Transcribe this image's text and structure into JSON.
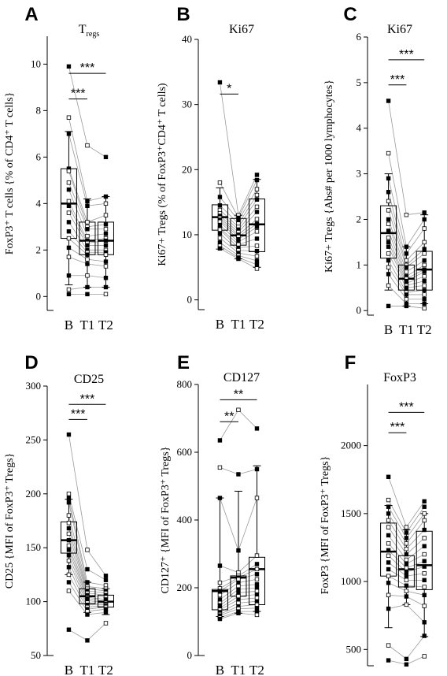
{
  "chart_data": [
    {
      "type": "box",
      "panel": "A",
      "title": "T",
      "title_sub": "regs",
      "ylabel": "FoxP3⁺ T cells {% of CD4⁺ T cells}",
      "ylim": [
        -0.6,
        11.2
      ],
      "yticks": [
        "0",
        "2",
        "4",
        "6",
        "8",
        "10"
      ],
      "yticks_values": [
        0,
        2,
        4,
        6,
        8,
        10
      ],
      "categories": [
        "B",
        "T1",
        "T2"
      ],
      "box": [
        {
          "whisker_low": 0.5,
          "q1": 2.5,
          "median": 4.0,
          "q3": 5.5,
          "whisker_high": 7.1
        },
        {
          "whisker_low": 0.4,
          "q1": 1.8,
          "median": 2.4,
          "q3": 3.2,
          "whisker_high": 4.2
        },
        {
          "whisker_low": 0.4,
          "q1": 1.8,
          "median": 2.4,
          "q3": 3.2,
          "whisker_high": 4.3
        }
      ],
      "points": [
        [
          9.9,
          7.7,
          7.0,
          5.5,
          5.4,
          4.9,
          4.6,
          4.1,
          3.9,
          3.6,
          3.2,
          2.8,
          2.5,
          2.1,
          1.7,
          0.9,
          0.3,
          0.1
        ],
        [
          6.5,
          4.1,
          3.9,
          3.2,
          3.0,
          2.9,
          2.6,
          2.4,
          2.3,
          2.2,
          2.0,
          1.9,
          1.8,
          1.6,
          1.4,
          0.9,
          0.4,
          0.1
        ],
        [
          6.0,
          4.3,
          4.0,
          3.5,
          3.1,
          2.9,
          2.7,
          2.5,
          2.4,
          2.2,
          2.0,
          1.9,
          1.8,
          1.5,
          1.3,
          0.8,
          0.4,
          0.1
        ]
      ],
      "significance": [
        {
          "from": "B",
          "to": "T1",
          "label": "***",
          "y": 8.5
        },
        {
          "from": "B",
          "to": "T2",
          "label": "***",
          "y": 9.6
        }
      ]
    },
    {
      "type": "box",
      "panel": "B",
      "title": "Ki67",
      "ylabel": "Ki67+ Tregs (% of FoxP3⁺CD4⁺ T cells)",
      "ylim": [
        -1.5,
        40
      ],
      "yticks": [
        "0",
        "10",
        "20",
        "30",
        "40"
      ],
      "yticks_values": [
        0,
        10,
        20,
        30,
        40
      ],
      "categories": [
        "B",
        "T1",
        "T2"
      ],
      "box": [
        {
          "whisker_low": 7.8,
          "q1": 10.7,
          "median": 12.7,
          "q3": 14.6,
          "whisker_high": 17.2
        },
        {
          "whisker_low": 6.3,
          "q1": 8.4,
          "median": 9.9,
          "q3": 12.5,
          "whisker_high": 13.0
        },
        {
          "whisker_low": 5.0,
          "q1": 7.4,
          "median": 11.6,
          "q3": 15.5,
          "whisker_high": 18.5
        }
      ],
      "points": [
        [
          33.4,
          18.0,
          15.8,
          14.5,
          13.8,
          13.3,
          12.9,
          12.6,
          12.3,
          12.0,
          11.5,
          11.0,
          10.8,
          10.2,
          9.5,
          8.8,
          8.3,
          7.9
        ],
        [
          13.0,
          12.6,
          12.2,
          11.7,
          11.2,
          10.8,
          10.4,
          10.0,
          9.7,
          9.3,
          8.9,
          8.5,
          8.0,
          7.6,
          7.2,
          6.8,
          6.5,
          6.3
        ],
        [
          19.2,
          18.4,
          17.0,
          16.1,
          15.4,
          14.3,
          13.5,
          12.4,
          11.7,
          11.2,
          10.5,
          9.4,
          8.3,
          7.5,
          6.7,
          6.0,
          5.4,
          4.8
        ]
      ],
      "significance": [
        {
          "from": "B",
          "to": "T1",
          "label": "*",
          "y": 31.6
        }
      ]
    },
    {
      "type": "box",
      "panel": "C",
      "title": "Ki67",
      "ylabel": "Ki67+ Tregs {Abs# per 1000 lymphocytes}",
      "ylim": [
        -0.1,
        6.0
      ],
      "yticks": [
        "0",
        "1",
        "2",
        "3",
        "4",
        "5",
        "6"
      ],
      "yticks_values": [
        0,
        1,
        2,
        3,
        4,
        5,
        6
      ],
      "categories": [
        "B",
        "T1",
        "T2"
      ],
      "box": [
        {
          "whisker_low": 0.45,
          "q1": 1.15,
          "median": 1.7,
          "q3": 2.3,
          "whisker_high": 3.0
        },
        {
          "whisker_low": 0.1,
          "q1": 0.45,
          "median": 0.7,
          "q3": 1.0,
          "whisker_high": 1.4
        },
        {
          "whisker_low": 0.15,
          "q1": 0.45,
          "median": 0.9,
          "q3": 1.3,
          "whisker_high": 2.1
        }
      ],
      "points": [
        [
          4.6,
          3.45,
          2.9,
          2.6,
          2.4,
          2.2,
          2.0,
          1.9,
          1.75,
          1.6,
          1.5,
          1.4,
          1.25,
          1.1,
          0.95,
          0.8,
          0.55,
          0.1
        ],
        [
          2.1,
          1.4,
          1.25,
          1.1,
          1.0,
          0.95,
          0.85,
          0.75,
          0.7,
          0.65,
          0.6,
          0.55,
          0.5,
          0.4,
          0.35,
          0.25,
          0.15,
          0.1
        ],
        [
          2.15,
          2.0,
          1.8,
          1.5,
          1.35,
          1.25,
          1.1,
          1.0,
          0.9,
          0.85,
          0.75,
          0.65,
          0.55,
          0.45,
          0.35,
          0.25,
          0.15,
          0.05
        ]
      ],
      "significance": [
        {
          "from": "B",
          "to": "T1",
          "label": "***",
          "y": 4.95
        },
        {
          "from": "B",
          "to": "T2",
          "label": "***",
          "y": 5.5
        }
      ]
    },
    {
      "type": "box",
      "panel": "D",
      "title": "CD25",
      "ylabel": "CD25 {MFI of FoxP3⁺ Tregs}",
      "ylim": [
        50,
        300
      ],
      "yticks": [
        "50",
        "100",
        "150",
        "200",
        "250",
        "300"
      ],
      "yticks_values": [
        50,
        100,
        150,
        200,
        250,
        300
      ],
      "categories": [
        "B",
        "T1",
        "T2"
      ],
      "box": [
        {
          "whisker_low": 125,
          "q1": 145,
          "median": 157,
          "q3": 174,
          "whisker_high": 195
        },
        {
          "whisker_low": 90,
          "q1": 98,
          "median": 105,
          "q3": 112,
          "whisker_high": 118
        },
        {
          "whisker_low": 88,
          "q1": 95,
          "median": 100,
          "q3": 106,
          "whisker_high": 112
        }
      ],
      "points": [
        [
          255,
          200,
          196,
          192,
          180,
          173,
          168,
          163,
          157,
          152,
          148,
          143,
          138,
          132,
          125,
          118,
          110,
          74
        ],
        [
          148,
          130,
          118,
          114,
          112,
          110,
          108,
          106,
          104,
          103,
          101,
          99,
          97,
          95,
          93,
          91,
          88,
          64
        ],
        [
          124,
          120,
          115,
          112,
          110,
          108,
          106,
          104,
          102,
          100,
          99,
          98,
          97,
          96,
          95,
          93,
          90,
          80
        ]
      ],
      "significance": [
        {
          "from": "B",
          "to": "T1",
          "label": "***",
          "y": 269
        },
        {
          "from": "B",
          "to": "T2",
          "label": "***",
          "y": 283
        }
      ]
    },
    {
      "type": "box",
      "panel": "E",
      "title": "CD127",
      "ylabel": "CD127⁺ {MFI of FoxP3⁺ Tregs}",
      "ylim": [
        0,
        800
      ],
      "yticks": [
        "0",
        "200",
        "400",
        "600",
        "800"
      ],
      "yticks_values": [
        0,
        200,
        400,
        600,
        800
      ],
      "categories": [
        "B",
        "T1",
        "T2"
      ],
      "box": [
        {
          "whisker_low": 115,
          "q1": 135,
          "median": 190,
          "q3": 195,
          "whisker_high": 465
        },
        {
          "whisker_low": 125,
          "q1": 175,
          "median": 230,
          "q3": 235,
          "whisker_high": 485
        },
        {
          "whisker_low": 130,
          "q1": 150,
          "median": 255,
          "q3": 290,
          "whisker_high": 560
        }
      ],
      "points": [
        [
          635,
          555,
          465,
          265,
          215,
          198,
          190,
          178,
          165,
          155,
          148,
          140,
          135,
          128,
          122,
          118,
          112,
          108
        ],
        [
          725,
          535,
          310,
          245,
          235,
          230,
          225,
          215,
          205,
          195,
          185,
          175,
          165,
          155,
          145,
          138,
          130,
          125
        ],
        [
          670,
          550,
          465,
          295,
          270,
          255,
          240,
          225,
          210,
          200,
          190,
          180,
          170,
          160,
          150,
          140,
          130,
          120
        ]
      ],
      "significance": [
        {
          "from": "B",
          "to": "T1",
          "label": "**",
          "y": 690
        },
        {
          "from": "B",
          "to": "T2",
          "label": "**",
          "y": 755
        }
      ]
    },
    {
      "type": "box",
      "panel": "F",
      "title": "FoxP3",
      "ylabel": "FoxP3 {MFI of FoxP3⁺ Tregs}",
      "ylim": [
        380,
        2450
      ],
      "yticks": [
        "500",
        "1000",
        "1500",
        "2000"
      ],
      "yticks_values": [
        500,
        1000,
        1500,
        2000
      ],
      "categories": [
        "B",
        "T1",
        "T2"
      ],
      "box": [
        {
          "whisker_low": 660,
          "q1": 1040,
          "median": 1220,
          "q3": 1430,
          "whisker_high": 1560
        },
        {
          "whisker_low": 830,
          "q1": 960,
          "median": 1090,
          "q3": 1190,
          "whisker_high": 1380
        },
        {
          "whisker_low": 595,
          "q1": 940,
          "median": 1120,
          "q3": 1370,
          "whisker_high": 1500
        }
      ],
      "points": [
        [
          1770,
          1600,
          1550,
          1500,
          1450,
          1400,
          1340,
          1280,
          1230,
          1190,
          1140,
          1090,
          1040,
          990,
          900,
          800,
          530,
          420
        ],
        [
          1400,
          1360,
          1320,
          1280,
          1240,
          1200,
          1160,
          1130,
          1100,
          1070,
          1040,
          1010,
          970,
          930,
          890,
          830,
          430,
          390
        ],
        [
          1590,
          1550,
          1500,
          1450,
          1380,
          1320,
          1260,
          1200,
          1150,
          1110,
          1060,
          1010,
          960,
          900,
          820,
          700,
          600,
          450
        ]
      ],
      "significance": [
        {
          "from": "B",
          "to": "T1",
          "label": "***",
          "y": 2095
        },
        {
          "from": "B",
          "to": "T2",
          "label": "***",
          "y": 2245
        }
      ]
    }
  ]
}
